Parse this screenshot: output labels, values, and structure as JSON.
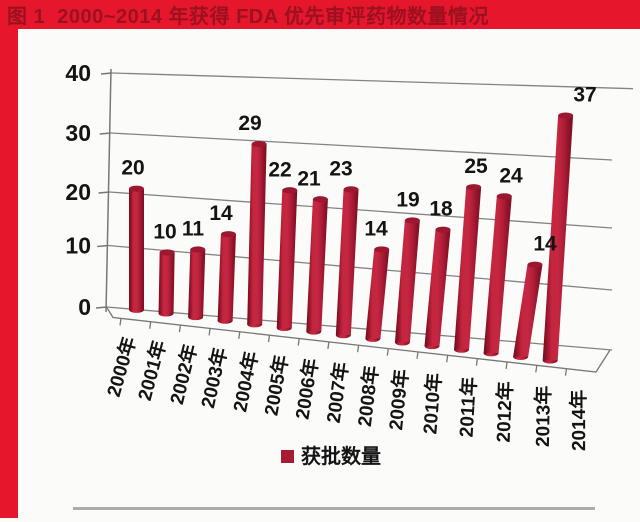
{
  "header": {
    "title": "图 1  2000~2014 年获得 FDA 优先审评药物数量情况"
  },
  "colors": {
    "accent_red": "#E6172C",
    "header_text": "#9B1120",
    "bar_main": "#B01E38",
    "bar_edge_dark": "#7A0F22",
    "bar_cap": "#9C1730",
    "grid": "#777777",
    "label_text": "#141414",
    "legend_square": "#A51C30",
    "divider_gray": "#ACACAC"
  },
  "chart_data": {
    "type": "bar",
    "style": "3d-cylinder",
    "title": "2000~2014 年获得 FDA 优先审评药物数量情况",
    "categories": [
      "2000年",
      "2001年",
      "2002年",
      "2003年",
      "2004年",
      "2005年",
      "2006年",
      "2007年",
      "2008年",
      "2009年",
      "2010年",
      "2011年",
      "2012年",
      "2013年",
      "2014年"
    ],
    "values": [
      20,
      10,
      11,
      14,
      29,
      22,
      21,
      23,
      14,
      19,
      18,
      25,
      24,
      14,
      37
    ],
    "series_name": "获批数量",
    "xlabel": "",
    "ylabel": "",
    "yticks": [
      0,
      10,
      20,
      30,
      40
    ],
    "ylim": [
      0,
      40
    ],
    "grid": true,
    "legend": {
      "label": "获批数量",
      "position": "bottom"
    }
  }
}
